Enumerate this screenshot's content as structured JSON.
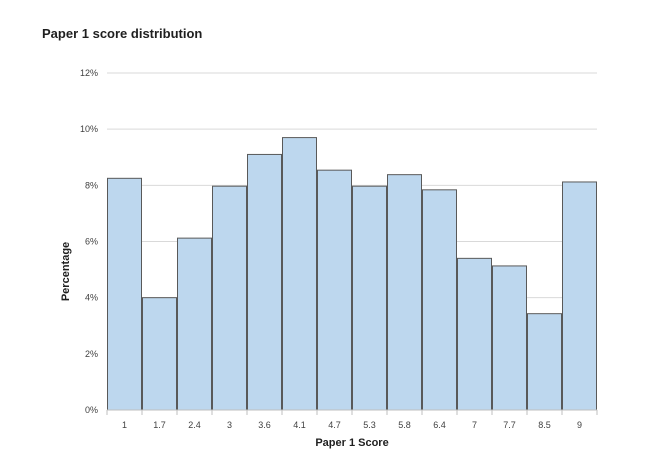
{
  "chart_data": {
    "type": "bar",
    "title": "Paper 1 score distribution",
    "xlabel": "Paper 1 Score",
    "ylabel": "Percentage",
    "categories": [
      "1",
      "1.7",
      "2.4",
      "3",
      "3.6",
      "4.1",
      "4.7",
      "5.3",
      "5.8",
      "6.4",
      "7",
      "7.7",
      "8.5",
      "9"
    ],
    "values": [
      8.25,
      4.0,
      6.12,
      7.97,
      9.1,
      9.7,
      8.54,
      7.97,
      8.38,
      7.84,
      5.4,
      5.13,
      3.43,
      8.12
    ],
    "ylim": [
      0,
      12
    ],
    "yticks": [
      0,
      2,
      4,
      6,
      8,
      10,
      12
    ],
    "ytick_labels": [
      "0%",
      "2%",
      "4%",
      "6%",
      "8%",
      "10%",
      "12%"
    ],
    "grid": true,
    "bar_color": "#bdd7ee",
    "bar_edge_color": "#595959"
  }
}
